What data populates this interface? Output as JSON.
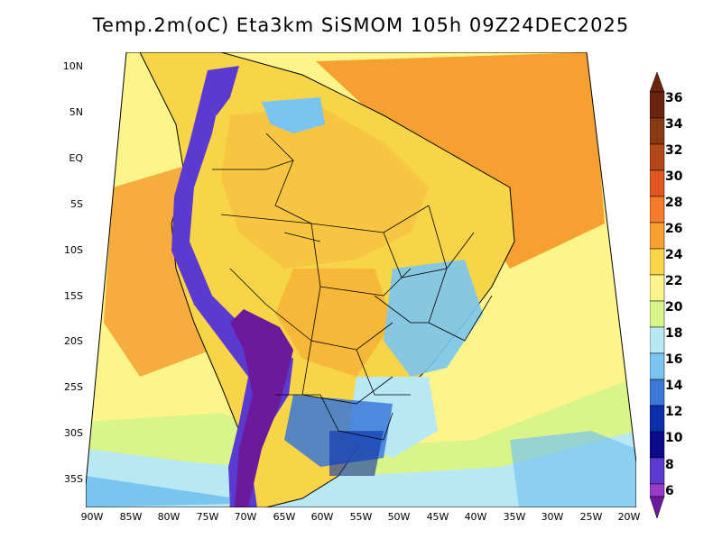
{
  "title": "Temp.2m(oC) Eta3km SiSMOM 105h 09Z24DEC2025",
  "lat_labels": [
    "10N",
    "5N",
    "EQ",
    "5S",
    "10S",
    "15S",
    "20S",
    "25S",
    "30S",
    "35S"
  ],
  "lon_labels": [
    "90W",
    "85W",
    "80W",
    "75W",
    "70W",
    "65W",
    "60W",
    "55W",
    "50W",
    "45W",
    "40W",
    "35W",
    "30W",
    "25W",
    "20W"
  ],
  "colorbar": {
    "labels": [
      "36",
      "34",
      "32",
      "30",
      "28",
      "26",
      "24",
      "22",
      "20",
      "18",
      "16",
      "14",
      "12",
      "10",
      "8",
      "6"
    ],
    "colors": [
      "#6b2410",
      "#8a3a12",
      "#b4471a",
      "#e0561f",
      "#f47b2a",
      "#f5a030",
      "#f8d548",
      "#fdf58a",
      "#d9f58a",
      "#b9e8f5",
      "#7ac5f0",
      "#3a78d8",
      "#0b2fa8",
      "#0a0a8a",
      "#5a3ad0",
      "#9a3ac8",
      "#6a1a9a"
    ]
  },
  "palette": {
    "ocean_warm": "#f5a030",
    "ocean_mild": "#f8d548",
    "ocean_cool": "#fdf58a",
    "ocean_cold": "#b9e8f5",
    "land": "#f8d548",
    "cold_high": "#7ac5f0",
    "andes": "#6a1a9a"
  }
}
